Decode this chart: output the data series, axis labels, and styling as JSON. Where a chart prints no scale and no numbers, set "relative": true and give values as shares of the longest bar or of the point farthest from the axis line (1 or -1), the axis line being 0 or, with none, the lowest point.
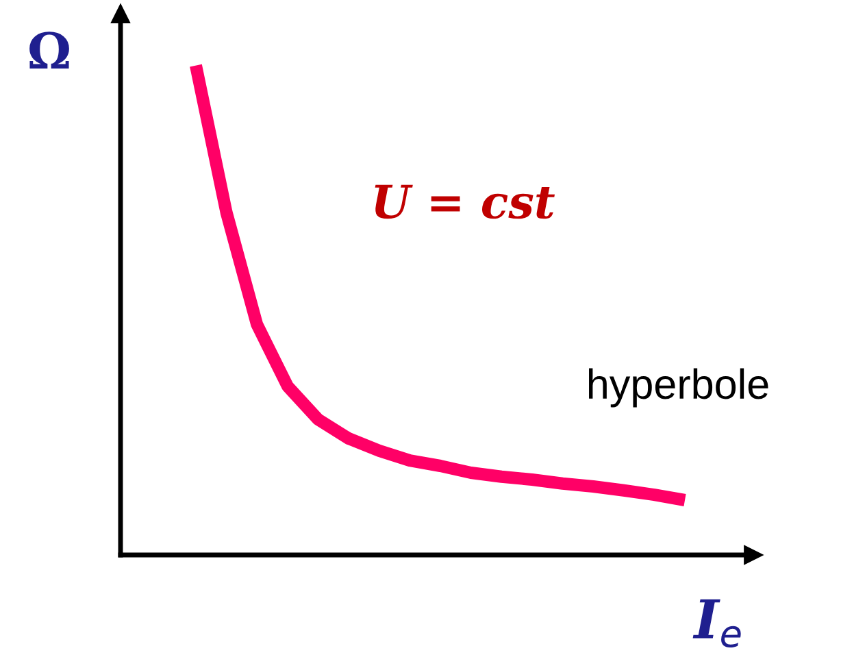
{
  "chart_data": {
    "type": "line",
    "relative": true,
    "xlabel": "I$_{e}$",
    "ylabel": "Ω",
    "annotations": [
      "U = cst",
      "hyperbole"
    ],
    "categories": [
      null,
      null,
      null,
      null,
      null,
      null,
      null,
      null,
      null,
      null,
      null,
      null,
      null,
      null,
      null,
      null,
      null
    ],
    "series": [
      {
        "color": "#ff0066",
        "values": [
          1.0,
          0.7,
          0.471,
          0.345,
          0.277,
          0.238,
          0.213,
          0.193,
          0.182,
          0.168,
          0.16,
          0.154,
          0.146,
          0.14,
          0.132,
          0.123,
          0.112
        ]
      }
    ],
    "marker": "none",
    "line_style": "solid",
    "legend": false
  }
}
